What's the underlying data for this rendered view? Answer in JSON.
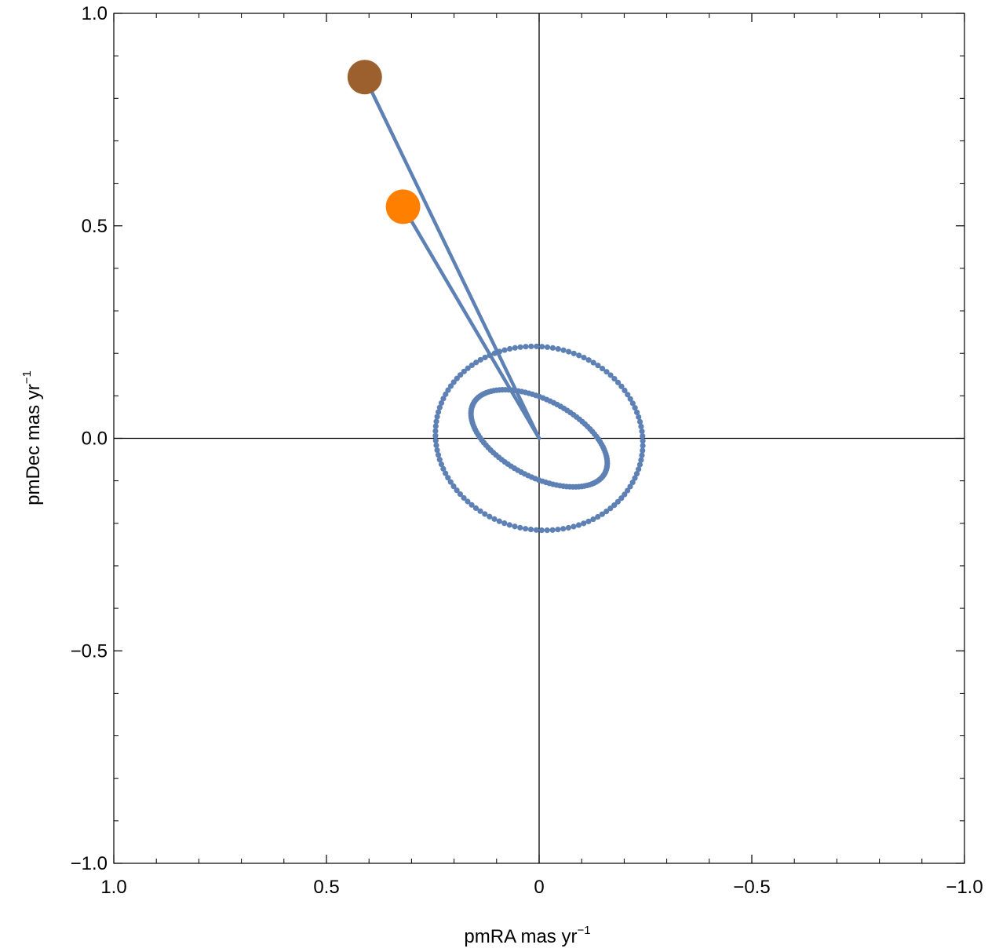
{
  "chart_data": {
    "type": "scatter",
    "xlabel": "pmRA  mas yr",
    "xlabel_sup": "−1",
    "ylabel": "pmDec  mas yr",
    "ylabel_sup": "−1",
    "xlim": [
      1.0,
      -1.0
    ],
    "ylim": [
      -1.0,
      1.0
    ],
    "x_reversed": true,
    "grid": false,
    "axes_through_origin": true,
    "x_ticks": [
      {
        "value": 1.0,
        "label": "1.0"
      },
      {
        "value": 0.5,
        "label": "0.5"
      },
      {
        "value": 0,
        "label": "0"
      },
      {
        "value": -0.5,
        "label": "−0.5"
      },
      {
        "value": -1.0,
        "label": "−1.0"
      }
    ],
    "y_ticks": [
      {
        "value": 1.0,
        "label": "1.0"
      },
      {
        "value": 0.5,
        "label": "0.5"
      },
      {
        "value": 0.0,
        "label": "0.0"
      },
      {
        "value": -0.5,
        "label": "−0.5"
      },
      {
        "value": -1.0,
        "label": "−1.0"
      }
    ],
    "x_minor_step": 0.1,
    "y_minor_step": 0.1,
    "ellipses": [
      {
        "cx": 0.0,
        "cy": 0.0,
        "a": 0.245,
        "b": 0.215,
        "rotation_deg": -12,
        "n_points": 120,
        "color": "#5e81b5"
      },
      {
        "cx": 0.0,
        "cy": 0.0,
        "a": 0.175,
        "b": 0.09,
        "rotation_deg": -28,
        "n_points": 120,
        "color": "#5e81b5"
      }
    ],
    "vectors": [
      {
        "from": [
          0,
          0
        ],
        "to": [
          0.41,
          0.85
        ],
        "color": "#5e81b5"
      },
      {
        "from": [
          0,
          0
        ],
        "to": [
          0.32,
          0.545
        ],
        "color": "#5e81b5"
      }
    ],
    "points": [
      {
        "x": 0.41,
        "y": 0.85,
        "color": "#9c5f2e"
      },
      {
        "x": 0.32,
        "y": 0.545,
        "color": "#ff7f00"
      }
    ]
  }
}
